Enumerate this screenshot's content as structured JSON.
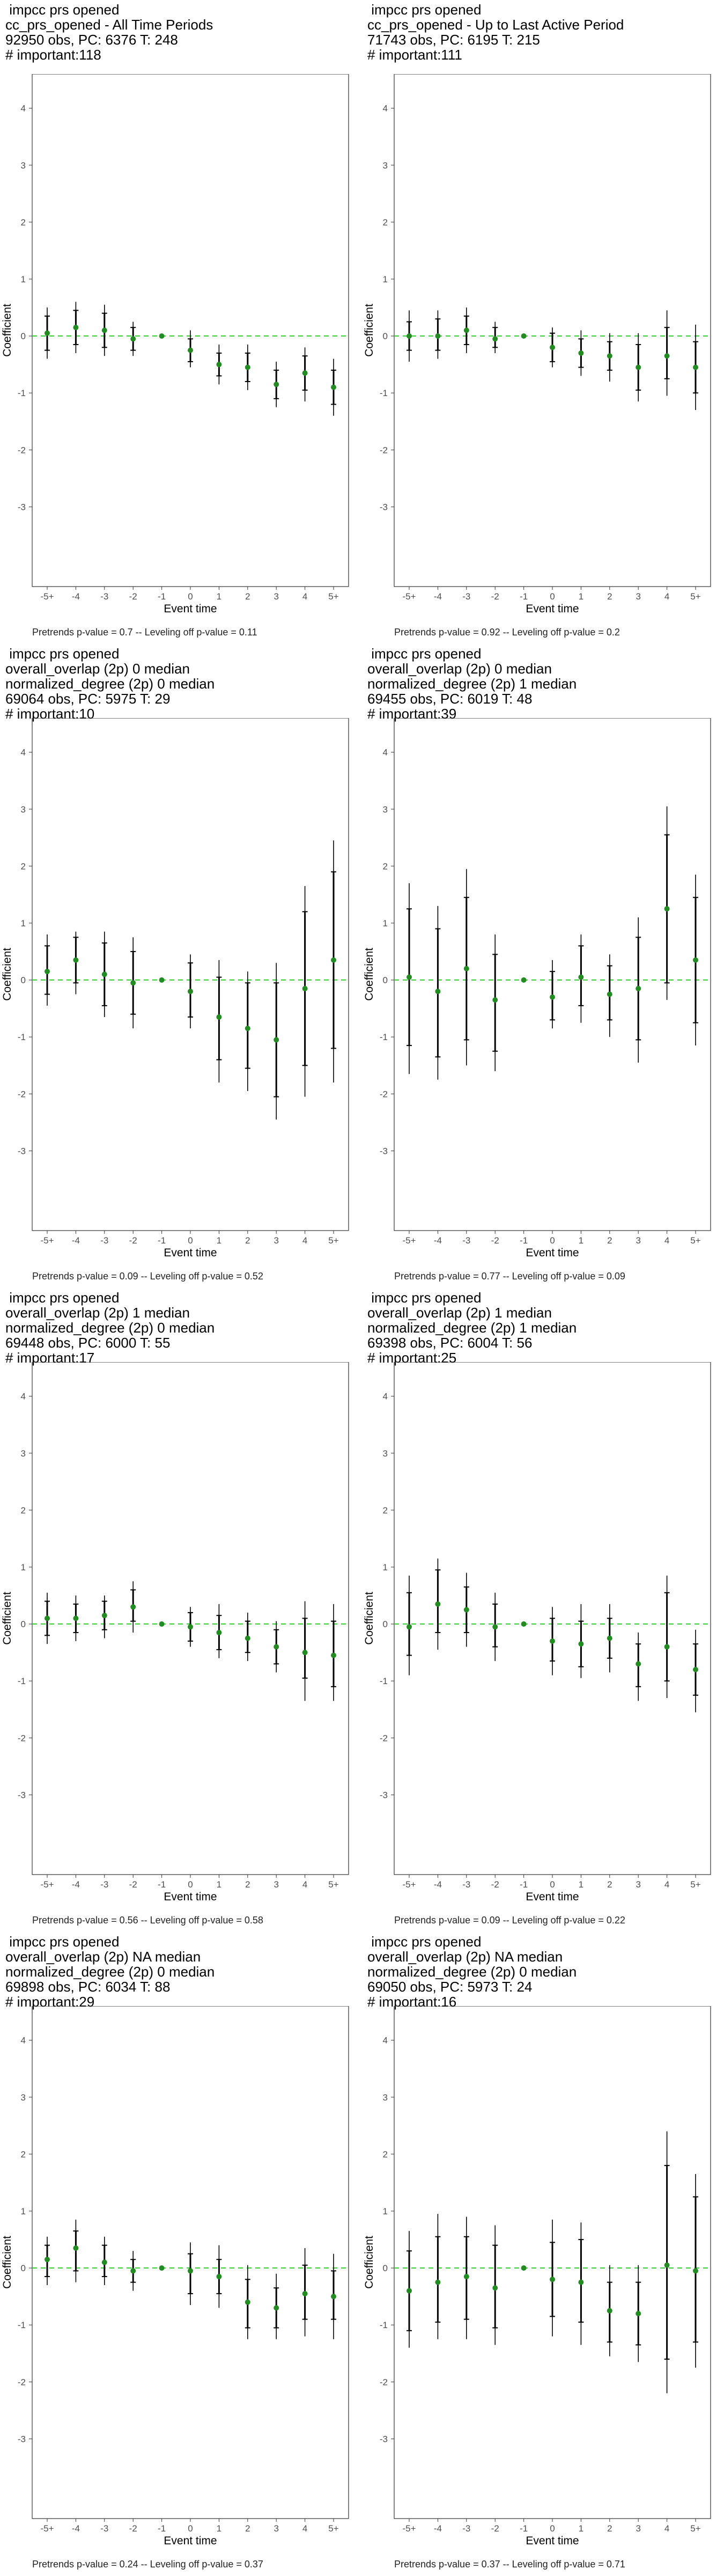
{
  "common": {
    "xlabel": "Event time",
    "ylabel": "Coefficient",
    "x_ticks": [
      "-5+",
      "-4",
      "-3",
      "-2",
      "-1",
      "0",
      "1",
      "2",
      "3",
      "4",
      "5+"
    ],
    "y_ticks": [
      -3,
      -2,
      -1,
      0,
      1,
      2,
      3,
      4
    ],
    "ylim": [
      -4.4,
      4.6
    ],
    "colors": {
      "point": "#228B22",
      "error_bar": "#000000",
      "zero_line": "#33CC33",
      "frame": "#333333"
    }
  },
  "panels": [
    {
      "title_lines": [
        " impcc prs opened",
        "cc_prs_opened - All Time Periods",
        "92950 obs, PC: 6376 T: 248",
        "# important:118"
      ],
      "footer": "Pretrends p-value = 0.7 -- Leveling off p-value = 0.11"
    },
    {
      "title_lines": [
        " impcc prs opened",
        "cc_prs_opened - Up to Last Active Period",
        "71743 obs, PC: 6195 T: 215",
        "# important:111"
      ],
      "footer": "Pretrends p-value = 0.92 -- Leveling off p-value = 0.2"
    },
    {
      "title_lines": [
        " impcc prs opened",
        "overall_overlap (2p) 0 median",
        "normalized_degree (2p) 0 median",
        "69064 obs, PC: 5975 T: 29",
        "# important:10"
      ],
      "footer": "Pretrends p-value = 0.09 -- Leveling off p-value = 0.52"
    },
    {
      "title_lines": [
        " impcc prs opened",
        "overall_overlap (2p) 0 median",
        "normalized_degree (2p) 1 median",
        "69455 obs, PC: 6019 T: 48",
        "# important:39"
      ],
      "footer": "Pretrends p-value = 0.77 -- Leveling off p-value = 0.09"
    },
    {
      "title_lines": [
        " impcc prs opened",
        "overall_overlap (2p) 1 median",
        "normalized_degree (2p) 0 median",
        "69448 obs, PC: 6000 T: 55",
        "# important:17"
      ],
      "footer": "Pretrends p-value = 0.56 -- Leveling off p-value = 0.58"
    },
    {
      "title_lines": [
        " impcc prs opened",
        "overall_overlap (2p) 1 median",
        "normalized_degree (2p) 1 median",
        "69398 obs, PC: 6004 T: 56",
        "# important:25"
      ],
      "footer": "Pretrends p-value = 0.09 -- Leveling off p-value = 0.22"
    },
    {
      "title_lines": [
        " impcc prs opened",
        "overall_overlap (2p) NA median",
        "normalized_degree (2p) 0 median",
        "69898 obs, PC: 6034 T: 88",
        "# important:29"
      ],
      "footer": "Pretrends p-value = 0.24 -- Leveling off p-value = 0.37"
    },
    {
      "title_lines": [
        " impcc prs opened",
        "overall_overlap (2p) NA median",
        "normalized_degree (2p) 0 median",
        "69050 obs, PC: 5973 T: 24",
        "# important:16"
      ],
      "footer": "Pretrends p-value = 0.37 -- Leveling off p-value = 0.71"
    }
  ],
  "chart_data": [
    {
      "type": "scatter",
      "title": "cc_prs_opened - All Time Periods",
      "x": [
        "-5+",
        "-4",
        "-3",
        "-2",
        "-1",
        "0",
        "1",
        "2",
        "3",
        "4",
        "5+"
      ],
      "y": [
        0.05,
        0.15,
        0.1,
        -0.05,
        0,
        -0.25,
        -0.5,
        -0.55,
        -0.85,
        -0.65,
        -0.9
      ],
      "inner": [
        [
          -0.25,
          0.35
        ],
        [
          -0.15,
          0.45
        ],
        [
          -0.2,
          0.4
        ],
        [
          -0.25,
          0.15
        ],
        [
          0,
          0
        ],
        [
          -0.45,
          -0.05
        ],
        [
          -0.7,
          -0.3
        ],
        [
          -0.8,
          -0.3
        ],
        [
          -1.1,
          -0.6
        ],
        [
          -0.95,
          -0.35
        ],
        [
          -1.2,
          -0.6
        ]
      ],
      "outer": [
        [
          -0.4,
          0.5
        ],
        [
          -0.3,
          0.6
        ],
        [
          -0.35,
          0.55
        ],
        [
          -0.35,
          0.25
        ],
        [
          0,
          0
        ],
        [
          -0.55,
          0.1
        ],
        [
          -0.85,
          -0.15
        ],
        [
          -0.95,
          -0.15
        ],
        [
          -1.25,
          -0.45
        ],
        [
          -1.15,
          -0.2
        ],
        [
          -1.4,
          -0.4
        ]
      ],
      "ylim": [
        -4.4,
        4.6
      ]
    },
    {
      "type": "scatter",
      "title": "cc_prs_opened - Up to Last Active Period",
      "x": [
        "-5+",
        "-4",
        "-3",
        "-2",
        "-1",
        "0",
        "1",
        "2",
        "3",
        "4",
        "5+"
      ],
      "y": [
        0,
        0,
        0.1,
        -0.05,
        0,
        -0.2,
        -0.3,
        -0.35,
        -0.55,
        -0.35,
        -0.55
      ],
      "inner": [
        [
          -0.25,
          0.25
        ],
        [
          -0.25,
          0.3
        ],
        [
          -0.15,
          0.35
        ],
        [
          -0.2,
          0.15
        ],
        [
          0,
          0
        ],
        [
          -0.45,
          0.05
        ],
        [
          -0.55,
          -0.05
        ],
        [
          -0.6,
          -0.1
        ],
        [
          -0.95,
          -0.15
        ],
        [
          -0.75,
          0.15
        ],
        [
          -1.0,
          -0.1
        ]
      ],
      "outer": [
        [
          -0.45,
          0.45
        ],
        [
          -0.4,
          0.45
        ],
        [
          -0.3,
          0.5
        ],
        [
          -0.3,
          0.25
        ],
        [
          0,
          0
        ],
        [
          -0.55,
          0.15
        ],
        [
          -0.7,
          0.1
        ],
        [
          -0.8,
          0.05
        ],
        [
          -1.15,
          0.05
        ],
        [
          -1.05,
          0.45
        ],
        [
          -1.3,
          0.2
        ]
      ],
      "ylim": [
        -4.4,
        4.6
      ]
    },
    {
      "type": "scatter",
      "title": "overall_overlap (2p) 0 median / normalized_degree (2p) 0 median",
      "x": [
        "-5+",
        "-4",
        "-3",
        "-2",
        "-1",
        "0",
        "1",
        "2",
        "3",
        "4",
        "5+"
      ],
      "y": [
        0.15,
        0.35,
        0.1,
        -0.05,
        0,
        -0.2,
        -0.65,
        -0.85,
        -1.05,
        -0.15,
        0.35
      ],
      "inner": [
        [
          -0.25,
          0.6
        ],
        [
          -0.05,
          0.75
        ],
        [
          -0.45,
          0.65
        ],
        [
          -0.6,
          0.5
        ],
        [
          0,
          0
        ],
        [
          -0.65,
          0.3
        ],
        [
          -1.4,
          0.05
        ],
        [
          -1.55,
          -0.05
        ],
        [
          -2.05,
          -0.05
        ],
        [
          -1.5,
          1.2
        ],
        [
          -1.2,
          1.9
        ]
      ],
      "outer": [
        [
          -0.45,
          0.8
        ],
        [
          -0.25,
          0.85
        ],
        [
          -0.65,
          0.85
        ],
        [
          -0.85,
          0.75
        ],
        [
          0,
          0
        ],
        [
          -0.85,
          0.45
        ],
        [
          -1.8,
          0.35
        ],
        [
          -1.95,
          0.15
        ],
        [
          -2.45,
          0.3
        ],
        [
          -2.05,
          1.65
        ],
        [
          -1.8,
          2.45
        ]
      ],
      "ylim": [
        -4.4,
        4.6
      ]
    },
    {
      "type": "scatter",
      "title": "overall_overlap (2p) 0 median / normalized_degree (2p) 1 median",
      "x": [
        "-5+",
        "-4",
        "-3",
        "-2",
        "-1",
        "0",
        "1",
        "2",
        "3",
        "4",
        "5+"
      ],
      "y": [
        0.05,
        -0.2,
        0.2,
        -0.35,
        0,
        -0.3,
        0.05,
        -0.25,
        -0.15,
        1.25,
        0.35
      ],
      "inner": [
        [
          -1.15,
          1.25
        ],
        [
          -1.35,
          0.9
        ],
        [
          -1.05,
          1.45
        ],
        [
          -1.25,
          0.45
        ],
        [
          0,
          0
        ],
        [
          -0.7,
          0.15
        ],
        [
          -0.45,
          0.6
        ],
        [
          -0.7,
          0.25
        ],
        [
          -1.05,
          0.75
        ],
        [
          -0.05,
          2.55
        ],
        [
          -0.75,
          1.45
        ]
      ],
      "outer": [
        [
          -1.65,
          1.7
        ],
        [
          -1.75,
          1.3
        ],
        [
          -1.5,
          1.95
        ],
        [
          -1.6,
          0.8
        ],
        [
          0,
          0
        ],
        [
          -0.85,
          0.35
        ],
        [
          -0.75,
          0.8
        ],
        [
          -1.0,
          0.45
        ],
        [
          -1.45,
          1.1
        ],
        [
          -0.35,
          3.05
        ],
        [
          -1.15,
          1.85
        ]
      ],
      "ylim": [
        -4.4,
        4.6
      ]
    },
    {
      "type": "scatter",
      "title": "overall_overlap (2p) 1 median / normalized_degree (2p) 0 median",
      "x": [
        "-5+",
        "-4",
        "-3",
        "-2",
        "-1",
        "0",
        "1",
        "2",
        "3",
        "4",
        "5+"
      ],
      "y": [
        0.1,
        0.1,
        0.15,
        0.3,
        0,
        -0.05,
        -0.15,
        -0.25,
        -0.4,
        -0.5,
        -0.55
      ],
      "inner": [
        [
          -0.2,
          0.4
        ],
        [
          -0.15,
          0.35
        ],
        [
          -0.1,
          0.4
        ],
        [
          0.05,
          0.6
        ],
        [
          0,
          0
        ],
        [
          -0.3,
          0.2
        ],
        [
          -0.45,
          0.15
        ],
        [
          -0.5,
          0.05
        ],
        [
          -0.7,
          -0.1
        ],
        [
          -0.95,
          0.1
        ],
        [
          -1.1,
          0.05
        ]
      ],
      "outer": [
        [
          -0.35,
          0.55
        ],
        [
          -0.3,
          0.5
        ],
        [
          -0.25,
          0.5
        ],
        [
          -0.15,
          0.75
        ],
        [
          0,
          0
        ],
        [
          -0.4,
          0.3
        ],
        [
          -0.6,
          0.35
        ],
        [
          -0.65,
          0.2
        ],
        [
          -0.85,
          0.05
        ],
        [
          -1.35,
          0.4
        ],
        [
          -1.35,
          0.35
        ]
      ],
      "ylim": [
        -4.4,
        4.6
      ]
    },
    {
      "type": "scatter",
      "title": "overall_overlap (2p) 1 median / normalized_degree (2p) 1 median",
      "x": [
        "-5+",
        "-4",
        "-3",
        "-2",
        "-1",
        "0",
        "1",
        "2",
        "3",
        "4",
        "5+"
      ],
      "y": [
        -0.05,
        0.35,
        0.25,
        -0.05,
        0,
        -0.3,
        -0.35,
        -0.25,
        -0.7,
        -0.4,
        -0.8
      ],
      "inner": [
        [
          -0.55,
          0.55
        ],
        [
          -0.15,
          0.95
        ],
        [
          -0.15,
          0.65
        ],
        [
          -0.4,
          0.35
        ],
        [
          0,
          0
        ],
        [
          -0.65,
          0.1
        ],
        [
          -0.75,
          0.05
        ],
        [
          -0.6,
          0.1
        ],
        [
          -1.1,
          -0.35
        ],
        [
          -1.0,
          0.55
        ],
        [
          -1.25,
          -0.35
        ]
      ],
      "outer": [
        [
          -0.9,
          0.85
        ],
        [
          -0.45,
          1.15
        ],
        [
          -0.4,
          0.9
        ],
        [
          -0.65,
          0.55
        ],
        [
          0,
          0
        ],
        [
          -0.9,
          0.3
        ],
        [
          -0.95,
          0.35
        ],
        [
          -0.85,
          0.35
        ],
        [
          -1.35,
          -0.15
        ],
        [
          -1.3,
          0.85
        ],
        [
          -1.55,
          -0.1
        ]
      ],
      "ylim": [
        -4.4,
        4.6
      ]
    },
    {
      "type": "scatter",
      "title": "overall_overlap (2p) NA median / normalized_degree (2p) 0 median",
      "x": [
        "-5+",
        "-4",
        "-3",
        "-2",
        "-1",
        "0",
        "1",
        "2",
        "3",
        "4",
        "5+"
      ],
      "y": [
        0.15,
        0.35,
        0.1,
        -0.05,
        0,
        -0.05,
        -0.15,
        -0.6,
        -0.7,
        -0.45,
        -0.5
      ],
      "inner": [
        [
          -0.15,
          0.4
        ],
        [
          -0.05,
          0.65
        ],
        [
          -0.15,
          0.4
        ],
        [
          -0.25,
          0.15
        ],
        [
          0,
          0
        ],
        [
          -0.45,
          0.25
        ],
        [
          -0.45,
          0.15
        ],
        [
          -1.05,
          -0.2
        ],
        [
          -1.05,
          -0.35
        ],
        [
          -0.9,
          0.05
        ],
        [
          -0.9,
          -0.05
        ]
      ],
      "outer": [
        [
          -0.3,
          0.55
        ],
        [
          -0.25,
          0.85
        ],
        [
          -0.3,
          0.55
        ],
        [
          -0.4,
          0.3
        ],
        [
          0,
          0
        ],
        [
          -0.65,
          0.45
        ],
        [
          -0.7,
          0.4
        ],
        [
          -1.25,
          0.05
        ],
        [
          -1.25,
          -0.1
        ],
        [
          -1.2,
          0.35
        ],
        [
          -1.25,
          0.25
        ]
      ],
      "ylim": [
        -4.4,
        4.6
      ]
    },
    {
      "type": "scatter",
      "title": "overall_overlap (2p) NA median / normalized_degree (2p) 0 median (T: 24)",
      "x": [
        "-5+",
        "-4",
        "-3",
        "-2",
        "-1",
        "0",
        "1",
        "2",
        "3",
        "4",
        "5+"
      ],
      "y": [
        -0.4,
        -0.25,
        -0.15,
        -0.35,
        0,
        -0.2,
        -0.25,
        -0.75,
        -0.8,
        0.05,
        -0.05
      ],
      "inner": [
        [
          -1.1,
          0.3
        ],
        [
          -0.95,
          0.55
        ],
        [
          -0.9,
          0.55
        ],
        [
          -1.05,
          0.4
        ],
        [
          0,
          0
        ],
        [
          -0.85,
          0.45
        ],
        [
          -0.95,
          0.5
        ],
        [
          -1.3,
          -0.25
        ],
        [
          -1.35,
          -0.25
        ],
        [
          -1.6,
          1.8
        ],
        [
          -1.3,
          1.25
        ]
      ],
      "outer": [
        [
          -1.4,
          0.65
        ],
        [
          -1.25,
          0.95
        ],
        [
          -1.25,
          0.9
        ],
        [
          -1.35,
          0.75
        ],
        [
          0,
          0
        ],
        [
          -1.2,
          0.85
        ],
        [
          -1.35,
          0.8
        ],
        [
          -1.55,
          0.05
        ],
        [
          -1.65,
          0.05
        ],
        [
          -2.2,
          2.4
        ],
        [
          -1.75,
          1.65
        ]
      ],
      "ylim": [
        -4.4,
        4.6
      ]
    }
  ]
}
